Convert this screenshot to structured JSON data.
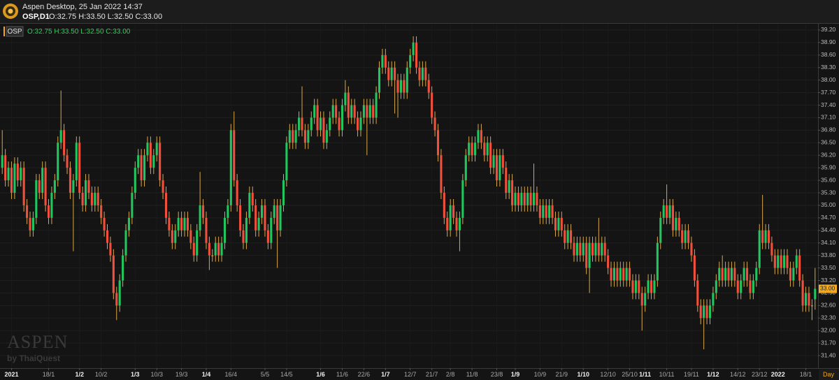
{
  "header": {
    "app_title": "Aspen Desktop, 25 Jan 2022 14:37",
    "symbol": "OSP,D1",
    "ohlc_text": "O:32.75 H:33.50 L:32.50 C:33.00"
  },
  "watermark": {
    "brand": "ASPEN",
    "byline": "by ThaiQuest"
  },
  "period_label": "Day",
  "chart_data": {
    "type": "candlestick",
    "legend_symbol": "OSP",
    "legend_ohlc": "O:32.75 H:33.50 L:32.50 C:33.00",
    "up_color": "#22c55e",
    "down_color": "#f0503c",
    "wick_color": "#d9a84a",
    "grid": true,
    "last_price": {
      "value": 33.0,
      "label": "33.00"
    },
    "ylim": [
      31.1,
      39.35
    ],
    "yticks": [
      {
        "value": 39.2,
        "label": "39.20"
      },
      {
        "value": 38.9,
        "label": "38.90"
      },
      {
        "value": 38.6,
        "label": "38.60"
      },
      {
        "value": 38.3,
        "label": "38.30"
      },
      {
        "value": 38.0,
        "label": "38.00"
      },
      {
        "value": 37.7,
        "label": "37.70"
      },
      {
        "value": 37.4,
        "label": "37.40"
      },
      {
        "value": 37.1,
        "label": "37.10"
      },
      {
        "value": 36.8,
        "label": "36.80"
      },
      {
        "value": 36.5,
        "label": "36.50"
      },
      {
        "value": 36.2,
        "label": "36.20"
      },
      {
        "value": 35.9,
        "label": "35.90"
      },
      {
        "value": 35.6,
        "label": "35.60"
      },
      {
        "value": 35.3,
        "label": "35.30"
      },
      {
        "value": 35.0,
        "label": "35.00"
      },
      {
        "value": 34.7,
        "label": "34.70"
      },
      {
        "value": 34.4,
        "label": "34.40"
      },
      {
        "value": 34.1,
        "label": "34.10"
      },
      {
        "value": 33.8,
        "label": "33.80"
      },
      {
        "value": 33.5,
        "label": "33.50"
      },
      {
        "value": 33.2,
        "label": "33.20"
      },
      {
        "value": 32.9,
        "label": "32.90"
      },
      {
        "value": 32.6,
        "label": "32.60"
      },
      {
        "value": 32.3,
        "label": "32.30"
      },
      {
        "value": 32.0,
        "label": "32.00"
      },
      {
        "value": 31.7,
        "label": "31.70"
      },
      {
        "value": 31.4,
        "label": "31.40"
      }
    ],
    "xticks": [
      {
        "value": 3,
        "label": "2021"
      },
      {
        "value": 15,
        "label": "18/1"
      },
      {
        "value": 25,
        "label": "1/2"
      },
      {
        "value": 32,
        "label": "10/2"
      },
      {
        "value": 43,
        "label": "1/3"
      },
      {
        "value": 50,
        "label": "10/3"
      },
      {
        "value": 58,
        "label": "19/3"
      },
      {
        "value": 66,
        "label": "1/4"
      },
      {
        "value": 74,
        "label": "16/4"
      },
      {
        "value": 85,
        "label": "5/5"
      },
      {
        "value": 92,
        "label": "14/5"
      },
      {
        "value": 103,
        "label": "1/6"
      },
      {
        "value": 110,
        "label": "11/6"
      },
      {
        "value": 117,
        "label": "22/6"
      },
      {
        "value": 124,
        "label": "1/7"
      },
      {
        "value": 132,
        "label": "12/7"
      },
      {
        "value": 139,
        "label": "21/7"
      },
      {
        "value": 145,
        "label": "2/8"
      },
      {
        "value": 152,
        "label": "11/8"
      },
      {
        "value": 160,
        "label": "23/8"
      },
      {
        "value": 166,
        "label": "1/9"
      },
      {
        "value": 174,
        "label": "10/9"
      },
      {
        "value": 181,
        "label": "21/9"
      },
      {
        "value": 188,
        "label": "1/10"
      },
      {
        "value": 196,
        "label": "12/10"
      },
      {
        "value": 203,
        "label": "25/10"
      },
      {
        "value": 208,
        "label": "1/11"
      },
      {
        "value": 215,
        "label": "10/11"
      },
      {
        "value": 223,
        "label": "19/11"
      },
      {
        "value": 230,
        "label": "1/12"
      },
      {
        "value": 238,
        "label": "14/12"
      },
      {
        "value": 245,
        "label": "23/12"
      },
      {
        "value": 251,
        "label": "2022"
      },
      {
        "value": 260,
        "label": "18/1"
      }
    ],
    "open": [
      35.9,
      36.2,
      35.6,
      35.9,
      35.3,
      36.0,
      35.6,
      35.9,
      35.0,
      34.7,
      34.4,
      34.7,
      35.6,
      35.3,
      35.9,
      35.0,
      34.7,
      35.3,
      35.6,
      36.5,
      36.8,
      36.2,
      35.9,
      35.3,
      35.6,
      36.5,
      35.3,
      35.0,
      35.6,
      35.3,
      35.0,
      35.3,
      35.0,
      34.7,
      34.4,
      34.1,
      33.8,
      32.9,
      32.6,
      33.2,
      33.8,
      34.4,
      34.7,
      35.3,
      35.9,
      36.2,
      35.6,
      36.2,
      36.5,
      35.9,
      36.2,
      36.5,
      35.6,
      35.3,
      34.7,
      34.4,
      34.1,
      34.4,
      34.7,
      34.4,
      34.7,
      34.4,
      34.1,
      33.8,
      34.4,
      35.0,
      34.7,
      34.1,
      33.8,
      33.8,
      34.1,
      33.8,
      34.1,
      34.7,
      35.0,
      36.8,
      35.6,
      35.0,
      34.4,
      34.1,
      34.7,
      35.3,
      35.0,
      34.4,
      34.7,
      35.0,
      34.4,
      34.1,
      34.7,
      35.0,
      34.4,
      35.0,
      35.6,
      36.5,
      36.8,
      36.5,
      36.8,
      37.1,
      36.8,
      36.5,
      36.8,
      37.1,
      37.4,
      36.8,
      37.1,
      36.5,
      36.8,
      37.1,
      37.4,
      37.1,
      36.8,
      37.4,
      37.7,
      37.1,
      37.4,
      37.1,
      36.8,
      37.1,
      37.4,
      37.1,
      37.4,
      37.1,
      37.7,
      38.3,
      38.6,
      38.3,
      38.0,
      38.3,
      38.0,
      37.7,
      38.0,
      37.7,
      38.3,
      38.6,
      38.9,
      38.3,
      38.0,
      38.3,
      38.0,
      37.7,
      37.1,
      36.8,
      36.2,
      35.3,
      34.7,
      34.4,
      35.0,
      34.7,
      34.4,
      34.7,
      35.6,
      36.2,
      36.5,
      36.2,
      36.5,
      36.8,
      36.5,
      36.2,
      36.5,
      35.9,
      36.2,
      35.6,
      36.2,
      35.9,
      35.3,
      35.6,
      35.0,
      35.3,
      35.0,
      35.3,
      35.0,
      35.3,
      35.0,
      35.3,
      35.0,
      34.7,
      35.0,
      34.7,
      35.0,
      34.7,
      34.4,
      34.7,
      34.4,
      34.1,
      34.4,
      34.1,
      33.8,
      34.1,
      33.8,
      34.1,
      33.5,
      34.1,
      33.8,
      34.1,
      33.8,
      34.1,
      33.8,
      33.5,
      33.2,
      33.5,
      33.2,
      33.5,
      33.2,
      33.5,
      33.2,
      32.9,
      33.2,
      32.9,
      32.6,
      32.9,
      33.2,
      32.9,
      33.2,
      34.1,
      34.7,
      35.0,
      34.7,
      35.0,
      34.4,
      34.7,
      34.4,
      34.1,
      34.4,
      34.1,
      33.8,
      33.2,
      32.6,
      32.3,
      32.6,
      32.3,
      32.6,
      32.9,
      33.2,
      33.5,
      33.2,
      33.5,
      33.2,
      33.5,
      33.2,
      32.9,
      33.2,
      33.5,
      33.2,
      32.9,
      33.2,
      33.5,
      34.4,
      34.1,
      34.4,
      34.1,
      33.8,
      33.5,
      33.8,
      33.5,
      33.8,
      33.5,
      33.2,
      33.5,
      33.8,
      33.2,
      32.6,
      32.9,
      32.6,
      32.75
    ],
    "high": [
      36.8,
      36.35,
      36.05,
      36.05,
      36.15,
      36.15,
      36.05,
      36.05,
      35.15,
      34.85,
      34.85,
      35.75,
      35.75,
      36.05,
      36.05,
      35.15,
      35.45,
      35.75,
      36.65,
      37.75,
      36.95,
      36.35,
      36.05,
      35.75,
      36.65,
      36.65,
      35.45,
      35.75,
      35.75,
      35.45,
      35.45,
      35.45,
      35.15,
      34.85,
      34.55,
      34.25,
      33.95,
      33.05,
      33.35,
      33.95,
      34.55,
      34.85,
      35.45,
      36.05,
      36.35,
      36.35,
      36.35,
      36.65,
      36.65,
      36.35,
      36.65,
      36.65,
      35.75,
      35.45,
      34.85,
      34.55,
      34.55,
      34.85,
      34.85,
      34.85,
      34.85,
      34.55,
      34.25,
      34.55,
      35.8,
      35.15,
      34.85,
      34.25,
      33.95,
      34.25,
      34.25,
      34.25,
      34.85,
      35.15,
      36.95,
      37.25,
      35.75,
      35.15,
      34.55,
      34.85,
      35.45,
      35.45,
      35.15,
      34.85,
      35.15,
      35.15,
      34.55,
      34.85,
      35.15,
      35.15,
      35.15,
      35.75,
      36.65,
      36.95,
      36.95,
      36.95,
      37.25,
      37.85,
      36.95,
      36.95,
      37.25,
      37.55,
      37.55,
      37.25,
      37.25,
      36.95,
      37.25,
      37.55,
      37.55,
      37.25,
      37.55,
      38.0,
      37.85,
      37.55,
      37.55,
      37.25,
      37.25,
      37.55,
      37.55,
      37.55,
      37.55,
      37.85,
      38.45,
      38.75,
      38.75,
      38.45,
      38.45,
      38.45,
      38.15,
      38.15,
      38.15,
      38.45,
      38.75,
      39.05,
      39.05,
      38.45,
      38.45,
      38.45,
      38.15,
      37.85,
      37.25,
      36.95,
      36.35,
      35.45,
      34.85,
      35.15,
      35.15,
      34.85,
      34.85,
      35.75,
      36.35,
      36.65,
      36.65,
      36.65,
      36.95,
      36.95,
      36.65,
      36.65,
      36.65,
      36.35,
      36.35,
      36.35,
      36.35,
      36.05,
      35.75,
      35.75,
      35.45,
      35.45,
      35.45,
      35.45,
      35.45,
      35.45,
      36.0,
      35.45,
      35.15,
      35.15,
      35.15,
      35.15,
      35.15,
      34.85,
      34.85,
      34.85,
      34.55,
      34.55,
      34.55,
      34.25,
      34.25,
      34.25,
      34.25,
      34.25,
      34.25,
      34.25,
      34.25,
      34.7,
      34.25,
      34.25,
      33.95,
      33.65,
      33.65,
      33.65,
      33.65,
      33.65,
      33.65,
      33.65,
      33.35,
      33.35,
      33.35,
      33.05,
      33.05,
      33.35,
      33.35,
      33.35,
      34.25,
      34.85,
      35.15,
      35.5,
      35.15,
      35.15,
      34.85,
      34.85,
      34.55,
      34.55,
      34.55,
      34.25,
      33.95,
      33.35,
      32.75,
      32.75,
      32.75,
      32.75,
      33.05,
      33.35,
      33.65,
      33.8,
      33.65,
      33.65,
      33.65,
      33.65,
      33.35,
      33.35,
      33.65,
      33.65,
      33.35,
      33.35,
      33.65,
      34.55,
      35.25,
      34.55,
      34.55,
      34.25,
      33.95,
      33.95,
      33.95,
      33.95,
      33.95,
      33.65,
      33.65,
      33.95,
      33.95,
      33.35,
      33.05,
      33.05,
      32.75,
      33.5
    ],
    "low": [
      35.75,
      35.45,
      35.45,
      35.15,
      35.15,
      35.45,
      35.45,
      34.85,
      34.55,
      34.25,
      34.25,
      34.55,
      35.15,
      35.15,
      34.85,
      34.55,
      34.55,
      35.15,
      35.45,
      36.35,
      36.05,
      35.75,
      35.15,
      33.9,
      35.45,
      35.15,
      34.85,
      34.85,
      35.15,
      34.85,
      34.85,
      34.85,
      34.55,
      34.25,
      33.95,
      33.65,
      32.75,
      32.25,
      32.45,
      33.05,
      33.65,
      34.25,
      34.55,
      35.15,
      35.75,
      35.45,
      35.45,
      36.05,
      35.75,
      35.75,
      36.05,
      35.45,
      35.15,
      34.55,
      34.25,
      33.95,
      33.95,
      34.25,
      34.25,
      34.25,
      34.25,
      33.95,
      33.65,
      33.65,
      34.25,
      34.55,
      33.95,
      33.45,
      33.65,
      33.65,
      33.65,
      33.65,
      33.95,
      34.55,
      34.85,
      35.45,
      34.85,
      34.25,
      33.95,
      33.95,
      34.55,
      34.85,
      34.25,
      34.25,
      34.55,
      34.25,
      33.95,
      33.95,
      34.55,
      33.5,
      34.25,
      34.85,
      35.45,
      36.35,
      36.35,
      36.35,
      36.65,
      36.65,
      36.35,
      36.35,
      36.65,
      36.95,
      36.65,
      36.65,
      36.35,
      36.35,
      36.65,
      36.95,
      36.95,
      36.65,
      36.65,
      37.25,
      36.95,
      36.95,
      36.95,
      36.65,
      36.65,
      36.95,
      36.2,
      36.95,
      36.95,
      36.95,
      37.55,
      38.15,
      38.15,
      37.85,
      37.85,
      37.2,
      37.1,
      37.55,
      37.55,
      37.55,
      38.15,
      38.45,
      38.15,
      37.85,
      37.85,
      37.85,
      37.55,
      36.95,
      36.65,
      36.05,
      35.15,
      34.55,
      34.25,
      34.25,
      34.55,
      34.25,
      33.9,
      34.55,
      35.45,
      36.05,
      36.05,
      36.05,
      36.35,
      36.35,
      36.05,
      36.05,
      35.75,
      35.75,
      35.45,
      35.45,
      35.75,
      35.15,
      35.15,
      34.85,
      34.85,
      34.85,
      34.85,
      34.85,
      34.85,
      34.85,
      34.85,
      34.85,
      34.55,
      34.55,
      34.55,
      34.55,
      34.55,
      34.25,
      34.25,
      34.25,
      33.95,
      33.95,
      33.95,
      33.65,
      33.65,
      33.65,
      33.65,
      33.35,
      32.9,
      33.65,
      33.65,
      33.65,
      33.65,
      33.65,
      33.35,
      33.05,
      33.05,
      33.05,
      33.05,
      33.05,
      33.05,
      33.05,
      32.75,
      32.75,
      32.75,
      32.0,
      32.45,
      32.75,
      32.75,
      32.75,
      33.05,
      33.95,
      34.55,
      34.55,
      34.55,
      34.25,
      34.25,
      34.25,
      33.95,
      33.95,
      33.95,
      33.65,
      33.05,
      32.45,
      32.15,
      31.55,
      32.15,
      32.15,
      32.45,
      32.75,
      33.05,
      33.05,
      33.05,
      33.05,
      33.05,
      33.05,
      32.75,
      32.75,
      33.05,
      33.05,
      32.75,
      32.75,
      33.05,
      33.35,
      33.95,
      33.95,
      33.95,
      33.65,
      33.35,
      33.35,
      33.35,
      33.35,
      33.35,
      33.05,
      33.05,
      33.35,
      33.05,
      32.45,
      32.45,
      32.45,
      32.25,
      32.5
    ],
    "close": [
      36.2,
      35.6,
      35.9,
      35.3,
      36.0,
      35.6,
      35.9,
      35.0,
      34.7,
      34.4,
      34.7,
      35.6,
      35.3,
      35.9,
      35.0,
      34.7,
      35.3,
      35.6,
      36.5,
      36.8,
      36.2,
      35.9,
      35.3,
      35.6,
      36.5,
      35.3,
      35.0,
      35.6,
      35.3,
      35.0,
      35.3,
      35.0,
      34.7,
      34.4,
      34.1,
      33.8,
      32.9,
      32.6,
      33.2,
      33.8,
      34.4,
      34.7,
      35.3,
      35.9,
      36.2,
      35.6,
      36.2,
      36.5,
      35.9,
      36.2,
      36.5,
      35.6,
      35.3,
      34.7,
      34.4,
      34.1,
      34.4,
      34.7,
      34.4,
      34.7,
      34.4,
      34.1,
      33.8,
      34.4,
      35.0,
      34.7,
      34.1,
      33.8,
      33.8,
      34.1,
      33.8,
      34.1,
      34.7,
      35.0,
      36.8,
      35.6,
      35.0,
      34.4,
      34.1,
      34.7,
      35.3,
      35.0,
      34.4,
      34.7,
      35.0,
      34.4,
      34.1,
      34.7,
      35.0,
      34.4,
      35.0,
      35.6,
      36.5,
      36.8,
      36.5,
      36.8,
      37.1,
      36.8,
      36.5,
      36.8,
      37.1,
      37.4,
      36.8,
      37.1,
      36.5,
      36.8,
      37.1,
      37.4,
      37.1,
      36.8,
      37.4,
      37.7,
      37.1,
      37.4,
      37.1,
      36.8,
      37.1,
      37.4,
      37.1,
      37.4,
      37.1,
      37.7,
      38.3,
      38.6,
      38.3,
      38.0,
      38.3,
      38.0,
      37.7,
      38.0,
      37.7,
      38.3,
      38.6,
      38.9,
      38.3,
      38.0,
      38.3,
      38.0,
      37.7,
      37.1,
      36.8,
      36.2,
      35.3,
      34.7,
      34.4,
      35.0,
      34.7,
      34.4,
      34.7,
      35.6,
      36.2,
      36.5,
      36.2,
      36.5,
      36.8,
      36.5,
      36.2,
      36.5,
      35.9,
      36.2,
      35.6,
      36.2,
      35.9,
      35.3,
      35.6,
      35.0,
      35.3,
      35.0,
      35.3,
      35.0,
      35.3,
      35.0,
      35.3,
      35.0,
      34.7,
      35.0,
      34.7,
      35.0,
      34.7,
      34.4,
      34.7,
      34.4,
      34.1,
      34.4,
      34.1,
      33.8,
      34.1,
      33.8,
      34.1,
      33.5,
      34.1,
      33.8,
      34.1,
      33.8,
      34.1,
      33.8,
      33.5,
      33.2,
      33.5,
      33.2,
      33.5,
      33.2,
      33.5,
      33.2,
      32.9,
      33.2,
      32.9,
      32.6,
      32.9,
      33.2,
      32.9,
      33.2,
      34.1,
      34.7,
      35.0,
      34.7,
      35.0,
      34.4,
      34.7,
      34.4,
      34.1,
      34.4,
      34.1,
      33.8,
      33.2,
      32.6,
      32.3,
      32.6,
      32.3,
      32.6,
      32.9,
      33.2,
      33.5,
      33.2,
      33.5,
      33.2,
      33.5,
      33.2,
      32.9,
      33.2,
      33.5,
      33.2,
      32.9,
      33.2,
      33.5,
      34.4,
      34.1,
      34.4,
      34.1,
      33.8,
      33.5,
      33.8,
      33.5,
      33.8,
      33.5,
      33.2,
      33.5,
      33.8,
      33.2,
      32.6,
      32.9,
      32.6,
      32.6,
      33.0
    ]
  }
}
